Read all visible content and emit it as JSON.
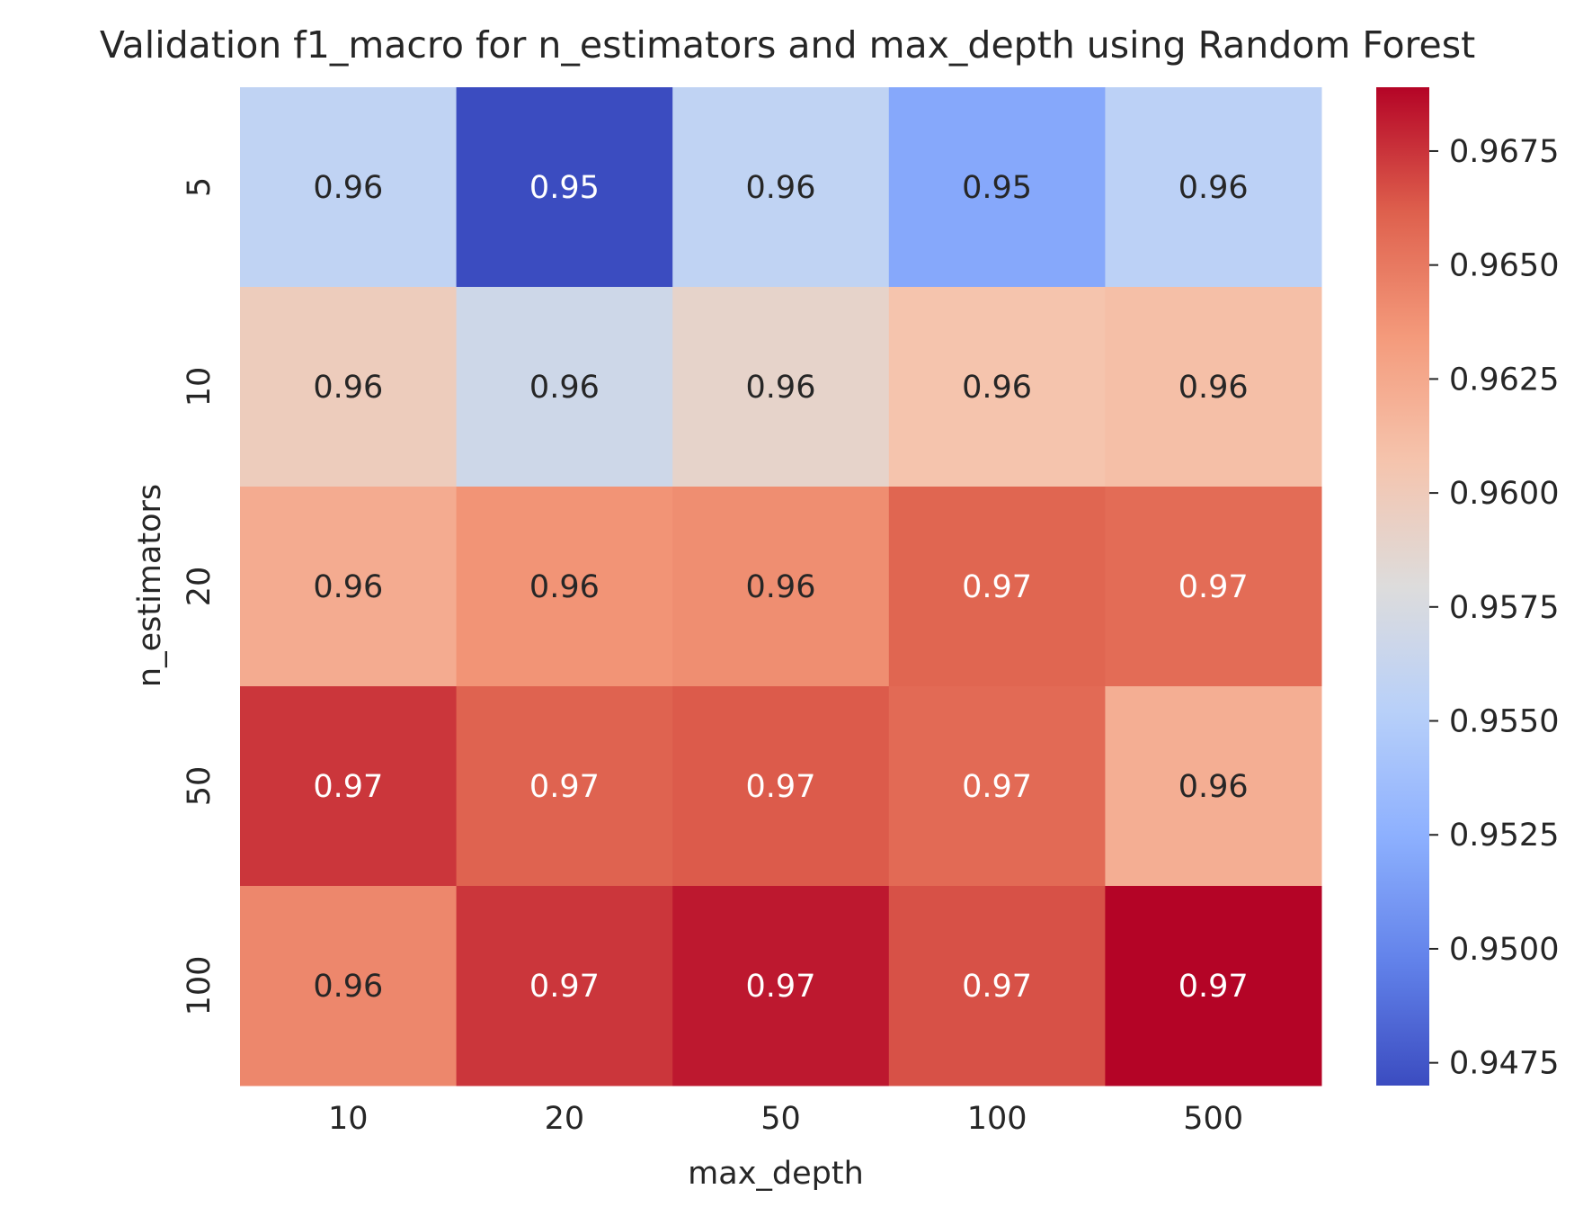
{
  "chart_data": {
    "type": "heatmap",
    "title": "Validation f1_macro for n_estimators and max_depth using Random Forest",
    "xlabel": "max_depth",
    "ylabel": "n_estimators",
    "x_categories": [
      "10",
      "20",
      "50",
      "100",
      "500"
    ],
    "y_categories": [
      "5",
      "10",
      "20",
      "50",
      "100"
    ],
    "values": [
      [
        0.9558,
        0.947,
        0.9558,
        0.952,
        0.9555
      ],
      [
        0.9598,
        0.9568,
        0.959,
        0.9607,
        0.961
      ],
      [
        0.9623,
        0.9637,
        0.964,
        0.9659,
        0.9656
      ],
      [
        0.9674,
        0.966,
        0.9663,
        0.9657,
        0.9621
      ],
      [
        0.9643,
        0.9674,
        0.9683,
        0.9666,
        0.9689
      ]
    ],
    "annotations": [
      [
        "0.96",
        "0.95",
        "0.96",
        "0.95",
        "0.96"
      ],
      [
        "0.96",
        "0.96",
        "0.96",
        "0.96",
        "0.96"
      ],
      [
        "0.96",
        "0.96",
        "0.96",
        "0.97",
        "0.97"
      ],
      [
        "0.97",
        "0.97",
        "0.97",
        "0.97",
        "0.96"
      ],
      [
        "0.96",
        "0.97",
        "0.97",
        "0.97",
        "0.97"
      ]
    ],
    "colormap": "coolwarm",
    "colorbar": {
      "min": 0.947,
      "max": 0.9689,
      "ticks": [
        0.9475,
        0.95,
        0.9525,
        0.955,
        0.9575,
        0.96,
        0.9625,
        0.965,
        0.9675
      ],
      "tick_labels": [
        "0.9475",
        "0.9500",
        "0.9525",
        "0.9550",
        "0.9575",
        "0.9600",
        "0.9625",
        "0.9650",
        "0.9675"
      ]
    },
    "grid": false
  }
}
